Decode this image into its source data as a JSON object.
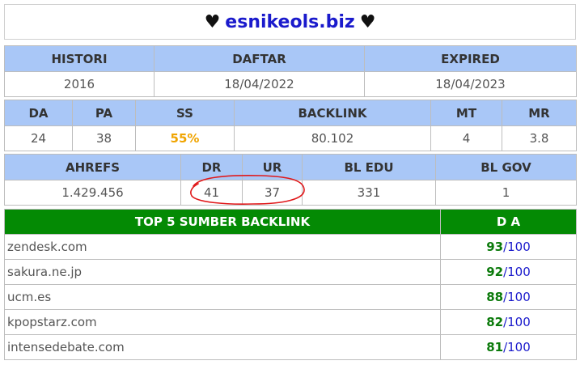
{
  "header": {
    "heart_left": "♥",
    "domain": "esnikeols.biz",
    "heart_right": "♥"
  },
  "registration": {
    "headers": [
      "HISTORI",
      "DAFTAR",
      "EXPIRED"
    ],
    "values": [
      "2016",
      "18/04/2022",
      "18/04/2023"
    ]
  },
  "metrics": {
    "headers": [
      "DA",
      "PA",
      "SS",
      "BACKLINK",
      "MT",
      "MR"
    ],
    "values": [
      "24",
      "38",
      "55%",
      "80.102",
      "4",
      "3.8"
    ]
  },
  "ahrefs": {
    "headers": [
      "AHREFS",
      "DR",
      "UR",
      "BL EDU",
      "BL GOV"
    ],
    "values": [
      "1.429.456",
      "41",
      "37",
      "331",
      "1"
    ]
  },
  "backlinks": {
    "header_site": "TOP 5 SUMBER BACKLINK",
    "header_da": "D A",
    "slash": "/",
    "max": "100",
    "rows": [
      {
        "site": "zendesk.com",
        "score": "93"
      },
      {
        "site": "sakura.ne.jp",
        "score": "92"
      },
      {
        "site": "ucm.es",
        "score": "88"
      },
      {
        "site": "kpopstarz.com",
        "score": "82"
      },
      {
        "site": "intensedebate.com",
        "score": "81"
      }
    ]
  },
  "colors": {
    "header_blue": "#a9c7f7",
    "header_green": "#048a04",
    "domain_blue": "#1a1acc",
    "score_green": "#0b7a0b",
    "ss_orange": "#f0a400",
    "annotation_red": "#e0191b"
  }
}
